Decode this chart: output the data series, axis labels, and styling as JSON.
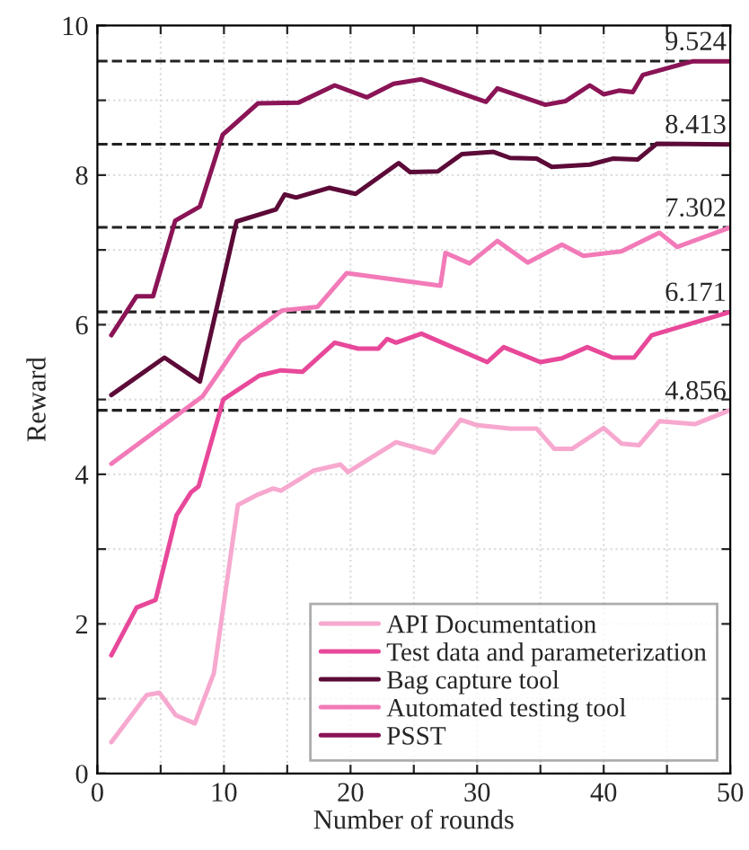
{
  "chart_data": {
    "type": "line",
    "xlabel": "Number of rounds",
    "ylabel": "Reward",
    "xlim": [
      0,
      50
    ],
    "ylim": [
      0,
      10
    ],
    "xticks": [
      0,
      {
        "value": 5,
        "label": null
      },
      10,
      {
        "value": 15,
        "label": null
      },
      20,
      {
        "value": 25,
        "label": null
      },
      30,
      {
        "value": 35,
        "label": null
      },
      40,
      {
        "value": 45,
        "label": null
      },
      50
    ],
    "yticks": [
      0,
      {
        "value": 1,
        "label": null
      },
      2,
      {
        "value": 3,
        "label": null
      },
      4,
      {
        "value": 5,
        "label": null
      },
      6,
      {
        "value": 7,
        "label": null
      },
      8,
      {
        "value": 9,
        "label": null
      },
      10
    ],
    "grid": true,
    "legend": "bottom right",
    "line_style": "solid",
    "marker": "none",
    "series": [
      {
        "name": "API Documentation",
        "color": "#f7a8cf",
        "x": [
          1.1,
          3.9,
          4.9,
          6.2,
          7.7,
          9.2,
          11.1,
          12.7,
          13.9,
          14.5,
          17.1,
          19.2,
          19.8,
          23.6,
          26.6,
          28.7,
          29.9,
          32.6,
          34.7,
          36.1,
          37.5,
          40.0,
          41.4,
          42.8,
          44.4,
          47.2,
          50
        ],
        "values": [
          0.42,
          1.05,
          1.08,
          0.78,
          0.67,
          1.34,
          3.59,
          3.73,
          3.81,
          3.78,
          4.05,
          4.13,
          4.03,
          4.43,
          4.29,
          4.73,
          4.66,
          4.61,
          4.61,
          4.34,
          4.34,
          4.62,
          4.41,
          4.39,
          4.71,
          4.67,
          4.86
        ]
      },
      {
        "name": "Test data and parameterization",
        "color": "#e8489a",
        "x": [
          1.1,
          3.1,
          4.6,
          6.25,
          7.4,
          8.0,
          9.95,
          12.8,
          14.5,
          16.2,
          18.75,
          20.6,
          22.2,
          22.9,
          23.6,
          25.6,
          30.8,
          32.1,
          35.0,
          36.7,
          38.7,
          40.7,
          42.4,
          43.8,
          50
        ],
        "values": [
          1.58,
          2.22,
          2.32,
          3.45,
          3.76,
          3.84,
          5.0,
          5.32,
          5.39,
          5.37,
          5.76,
          5.68,
          5.68,
          5.81,
          5.76,
          5.88,
          5.5,
          5.7,
          5.5,
          5.55,
          5.7,
          5.56,
          5.56,
          5.86,
          6.17
        ]
      },
      {
        "name": "Bag capture tool",
        "color": "#5c0a38",
        "x": [
          1.1,
          5.3,
          8.1,
          11.0,
          14.1,
          14.8,
          15.7,
          18.3,
          20.4,
          23.8,
          24.7,
          26.9,
          28.8,
          31.3,
          32.6,
          34.7,
          35.9,
          38.9,
          40.7,
          42.7,
          44.2,
          50
        ],
        "values": [
          5.06,
          5.56,
          5.24,
          7.38,
          7.54,
          7.74,
          7.7,
          7.83,
          7.75,
          8.16,
          8.04,
          8.05,
          8.28,
          8.31,
          8.23,
          8.22,
          8.11,
          8.14,
          8.22,
          8.21,
          8.42,
          8.41
        ]
      },
      {
        "name": "Automated testing tool",
        "color": "#f27ab8",
        "x": [
          1.1,
          8.3,
          11.3,
          14.6,
          17.4,
          19.7,
          27.1,
          27.5,
          29.4,
          31.6,
          34.0,
          36.7,
          38.4,
          41.4,
          44.4,
          45.8,
          50
        ],
        "values": [
          4.14,
          5.04,
          5.78,
          6.19,
          6.24,
          6.69,
          6.52,
          6.96,
          6.82,
          7.12,
          6.83,
          7.07,
          6.92,
          6.98,
          7.23,
          7.04,
          7.3
        ]
      },
      {
        "name": "PSST",
        "color": "#8a1456",
        "x": [
          1.1,
          3.1,
          4.4,
          6.15,
          8.1,
          9.9,
          12.7,
          15.9,
          18.75,
          21.3,
          23.4,
          25.6,
          30.7,
          31.6,
          35.4,
          37.0,
          38.9,
          40.0,
          41.2,
          42.3,
          43.1,
          47.0,
          50
        ],
        "values": [
          5.86,
          6.38,
          6.38,
          7.39,
          7.58,
          8.54,
          8.96,
          8.97,
          9.2,
          9.04,
          9.22,
          9.28,
          8.98,
          9.16,
          8.94,
          8.99,
          9.2,
          9.08,
          9.13,
          9.11,
          9.34,
          9.52,
          9.52
        ]
      }
    ],
    "ref_lines": [
      {
        "axis": "y",
        "value": 9.524,
        "label": "9.524",
        "color": "#222222",
        "line_style": "dashed"
      },
      {
        "axis": "y",
        "value": 8.413,
        "label": "8.413",
        "color": "#222222",
        "line_style": "dashed"
      },
      {
        "axis": "y",
        "value": 7.302,
        "label": "7.302",
        "color": "#222222",
        "line_style": "dashed"
      },
      {
        "axis": "y",
        "value": 6.171,
        "label": "6.171",
        "color": "#222222",
        "line_style": "dashed"
      },
      {
        "axis": "y",
        "value": 4.856,
        "label": "4.856",
        "color": "#222222",
        "line_style": "dashed"
      }
    ]
  }
}
